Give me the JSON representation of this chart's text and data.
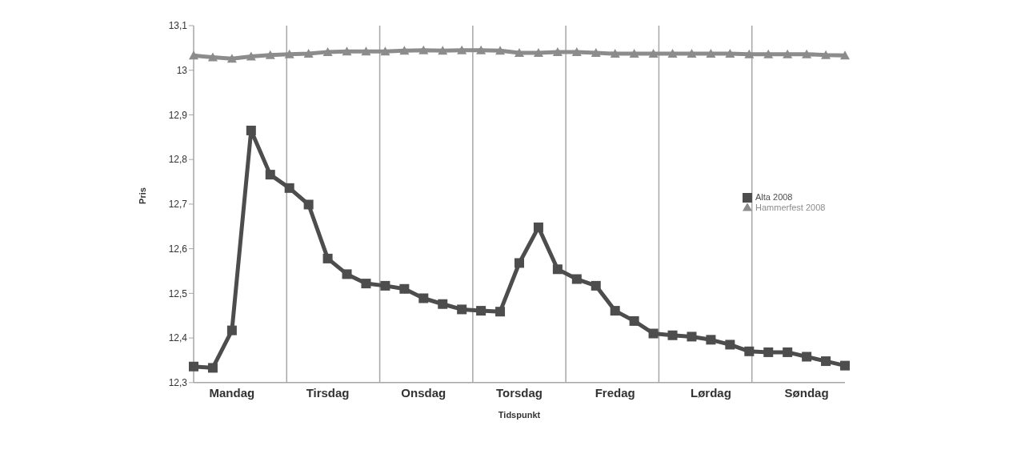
{
  "chart_data": {
    "type": "line",
    "xlabel": "Tidspunkt",
    "ylabel": "Pris",
    "categories": [
      null,
      null,
      "Mandag",
      null,
      null,
      null,
      null,
      "Tirsdag",
      null,
      null,
      null,
      null,
      "Onsdag",
      null,
      null,
      null,
      null,
      "Torsdag",
      null,
      null,
      null,
      null,
      "Fredag",
      null,
      null,
      null,
      null,
      "Lørdag",
      null,
      null,
      null,
      null,
      "Søndag",
      null,
      null
    ],
    "series": [
      {
        "name": "Hammerfest 2008",
        "color": "#8c8c8c",
        "marker": "triangle",
        "values": [
          13.033,
          13.029,
          13.026,
          13.031,
          13.034,
          13.036,
          13.037,
          13.041,
          13.042,
          13.042,
          13.042,
          13.044,
          13.045,
          13.044,
          13.045,
          13.045,
          13.044,
          13.039,
          13.039,
          13.041,
          13.041,
          13.039,
          13.037,
          13.037,
          13.037,
          13.037,
          13.037,
          13.037,
          13.037,
          13.036,
          13.036,
          13.036,
          13.036,
          13.034,
          13.033
        ]
      },
      {
        "name": "Alta 2008",
        "color": "#4d4d4d",
        "marker": "square",
        "values": [
          12.336,
          12.333,
          12.417,
          12.865,
          12.766,
          12.736,
          12.699,
          12.578,
          12.543,
          12.522,
          12.517,
          12.51,
          12.489,
          12.476,
          12.464,
          12.461,
          12.459,
          12.568,
          12.648,
          12.554,
          12.532,
          12.517,
          12.461,
          12.438,
          12.41,
          12.406,
          12.403,
          12.396,
          12.385,
          12.37,
          12.368,
          12.368,
          12.358,
          12.348,
          12.338
        ]
      }
    ],
    "ylim": [
      12.3,
      13.1
    ],
    "yticks": [
      {
        "value": 12.3,
        "label": "12,3"
      },
      {
        "value": 12.4,
        "label": "12,4"
      },
      {
        "value": 12.5,
        "label": "12,5"
      },
      {
        "value": 12.6,
        "label": "12,6"
      },
      {
        "value": 12.7,
        "label": "12,7"
      },
      {
        "value": 12.8,
        "label": "12,8"
      },
      {
        "value": 12.9,
        "label": "12,9"
      },
      13,
      {
        "value": 13.1,
        "label": "13,1"
      }
    ],
    "grid": "x",
    "legend": "right",
    "line_style": "solid"
  }
}
